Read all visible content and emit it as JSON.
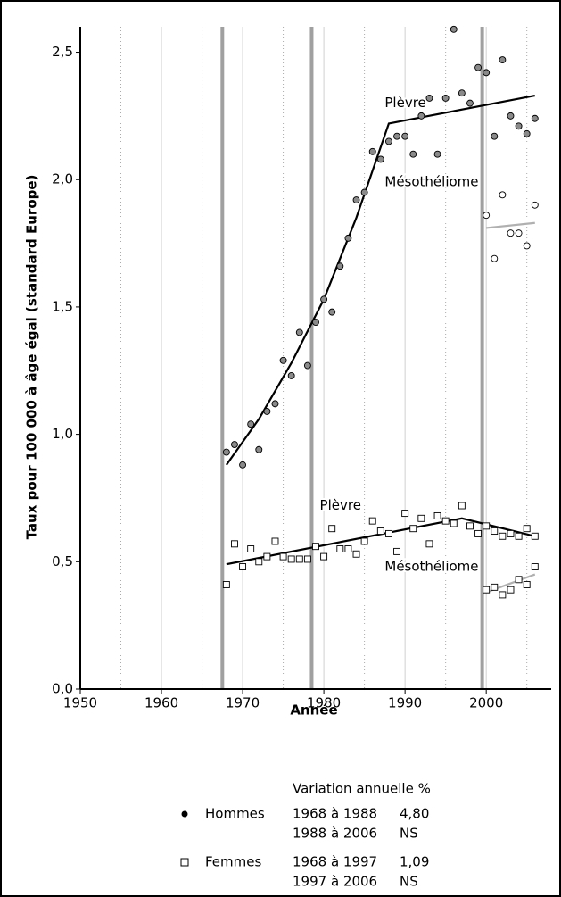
{
  "chart_data": {
    "type": "scatter",
    "xlabel": "Année",
    "ylabel": "Taux pour 100 000 à âge égal (standard Europe)",
    "xlim": [
      1950,
      2008
    ],
    "ylim": [
      0,
      2.6
    ],
    "xticks": [
      1950,
      1960,
      1970,
      1980,
      1990,
      2000
    ],
    "yticks": [
      {
        "value": 0,
        "label": "0,0"
      },
      {
        "value": 0.5,
        "label": "0,5"
      },
      {
        "value": 1,
        "label": "1,0"
      },
      {
        "value": 1.5,
        "label": "1,5"
      },
      {
        "value": 2,
        "label": "2,0"
      },
      {
        "value": 2.5,
        "label": "2,5"
      }
    ],
    "minor_grid_x": [
      1955,
      1965,
      1975,
      1985,
      1995,
      2005
    ],
    "grid": true,
    "vertical_markers": [
      1967.5,
      1978.5,
      1999.5
    ],
    "series": [
      {
        "marker": "circle",
        "color": "#8a8a8a",
        "x": [
          1968,
          1969,
          1970,
          1971,
          1972,
          1973,
          1974,
          1975,
          1976,
          1977,
          1978,
          1979,
          1980,
          1981,
          1982,
          1983,
          1984,
          1985,
          1986,
          1987,
          1988,
          1989,
          1990,
          1991,
          1992,
          1993,
          1994,
          1995,
          1996,
          1997,
          1998,
          1999,
          2000,
          2001,
          2002,
          2003,
          2004,
          2005,
          2006
        ],
        "values": [
          0.93,
          0.96,
          0.88,
          1.04,
          0.94,
          1.09,
          1.12,
          1.29,
          1.23,
          1.4,
          1.27,
          1.44,
          1.53,
          1.48,
          1.66,
          1.77,
          1.92,
          1.95,
          2.11,
          2.08,
          2.15,
          2.17,
          2.17,
          2.1,
          2.25,
          2.32,
          2.1,
          2.32,
          2.59,
          2.34,
          2.3,
          2.44,
          2.42,
          2.17,
          2.47,
          2.25,
          2.21,
          2.18,
          2.24
        ]
      },
      {
        "marker": "circle",
        "color": "#ffffff",
        "x": [
          2000,
          2001,
          2002,
          2003,
          2004,
          2005,
          2006
        ],
        "values": [
          1.86,
          1.69,
          1.94,
          1.79,
          1.79,
          1.74,
          1.9
        ]
      },
      {
        "marker": "square",
        "color": "#ffffff",
        "x": [
          1968,
          1969,
          1970,
          1971,
          1972,
          1973,
          1974,
          1975,
          1976,
          1977,
          1978,
          1979,
          1980,
          1981,
          1982,
          1983,
          1984,
          1985,
          1986,
          1987,
          1988,
          1989,
          1990,
          1991,
          1992,
          1993,
          1994,
          1995,
          1996,
          1997,
          1998,
          1999,
          2000,
          2001,
          2002,
          2003,
          2004,
          2005,
          2006
        ],
        "values": [
          0.41,
          0.57,
          0.48,
          0.55,
          0.5,
          0.52,
          0.58,
          0.52,
          0.51,
          0.51,
          0.51,
          0.56,
          0.52,
          0.63,
          0.55,
          0.55,
          0.53,
          0.58,
          0.66,
          0.62,
          0.61,
          0.54,
          0.69,
          0.63,
          0.67,
          0.57,
          0.68,
          0.66,
          0.65,
          0.72,
          0.64,
          0.61,
          0.64,
          0.62,
          0.6,
          0.61,
          0.6,
          0.63,
          0.6
        ]
      },
      {
        "marker": "square",
        "color": "#ffffff",
        "x": [
          2000,
          2001,
          2002,
          2003,
          2004,
          2005,
          2006
        ],
        "values": [
          0.39,
          0.4,
          0.37,
          0.39,
          0.43,
          0.41,
          0.48
        ]
      }
    ],
    "fits": [
      {
        "color": "#000000",
        "x": [
          1968,
          1972,
          1976,
          1980,
          1984,
          1988,
          2006
        ],
        "values": [
          0.88,
          1.06,
          1.28,
          1.53,
          1.85,
          2.22,
          2.33
        ]
      },
      {
        "color": "#b0b0b0",
        "x": [
          2000,
          2006
        ],
        "values": [
          1.81,
          1.83
        ]
      },
      {
        "color": "#000000",
        "x": [
          1968,
          1997,
          2006
        ],
        "values": [
          0.49,
          0.67,
          0.6
        ]
      },
      {
        "color": "#b0b0b0",
        "x": [
          2000,
          2006
        ],
        "values": [
          0.38,
          0.45
        ]
      }
    ],
    "annotations": [
      {
        "text": "Plèvre",
        "x": 1987.5,
        "y": 2.3
      },
      {
        "text": "Mésothéliome",
        "x": 1987.5,
        "y": 1.99
      },
      {
        "text": "Plèvre",
        "x": 1979.5,
        "y": 0.72
      },
      {
        "text": "Mésothéliome",
        "x": 1987.5,
        "y": 0.48
      }
    ],
    "legend": {
      "title": "Variation annuelle %",
      "entries": [
        {
          "name": "Hommes",
          "marker": "circle",
          "rows": [
            [
              "1968 à 1988",
              "4,80"
            ],
            [
              "1988 à 2006",
              "NS"
            ]
          ]
        },
        {
          "name": "Femmes",
          "marker": "square",
          "rows": [
            [
              "1968 à 1997",
              "1,09"
            ],
            [
              "1997 à 2006",
              "NS"
            ]
          ]
        }
      ]
    }
  }
}
